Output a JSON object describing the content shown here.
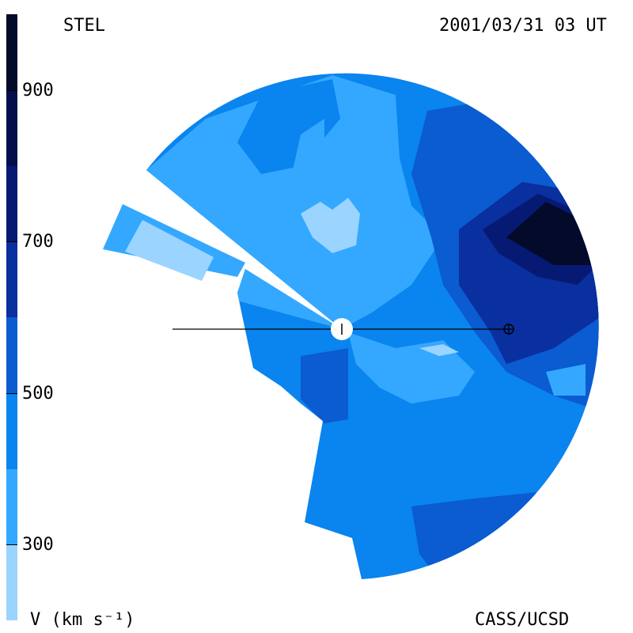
{
  "header": {
    "left_label": "STEL",
    "right_label": "2001/03/31 03 UT"
  },
  "footer": {
    "left_label": "V (km s⁻¹)",
    "right_label": "CASS/UCSD"
  },
  "chart_data": {
    "type": "heatmap",
    "title": "",
    "quantity": "V (km s⁻¹)",
    "colorbar": {
      "ticks": [
        300,
        500,
        700,
        900
      ],
      "tick_labels": [
        "300",
        "500",
        "700",
        "900"
      ],
      "range": [
        200,
        1000
      ],
      "levels": [
        {
          "from": 200,
          "to": 300,
          "color": "#9bd4ff"
        },
        {
          "from": 300,
          "to": 400,
          "color": "#34a8ff"
        },
        {
          "from": 400,
          "to": 500,
          "color": "#0a84ee"
        },
        {
          "from": 500,
          "to": 600,
          "color": "#0b5bd1"
        },
        {
          "from": 600,
          "to": 700,
          "color": "#0a2f9e"
        },
        {
          "from": 700,
          "to": 800,
          "color": "#061a73"
        },
        {
          "from": 800,
          "to": 900,
          "color": "#040e4d"
        },
        {
          "from": 900,
          "to": 1000,
          "color": "#030a2a"
        }
      ]
    },
    "markers": [
      "Sun",
      "Earth"
    ]
  }
}
